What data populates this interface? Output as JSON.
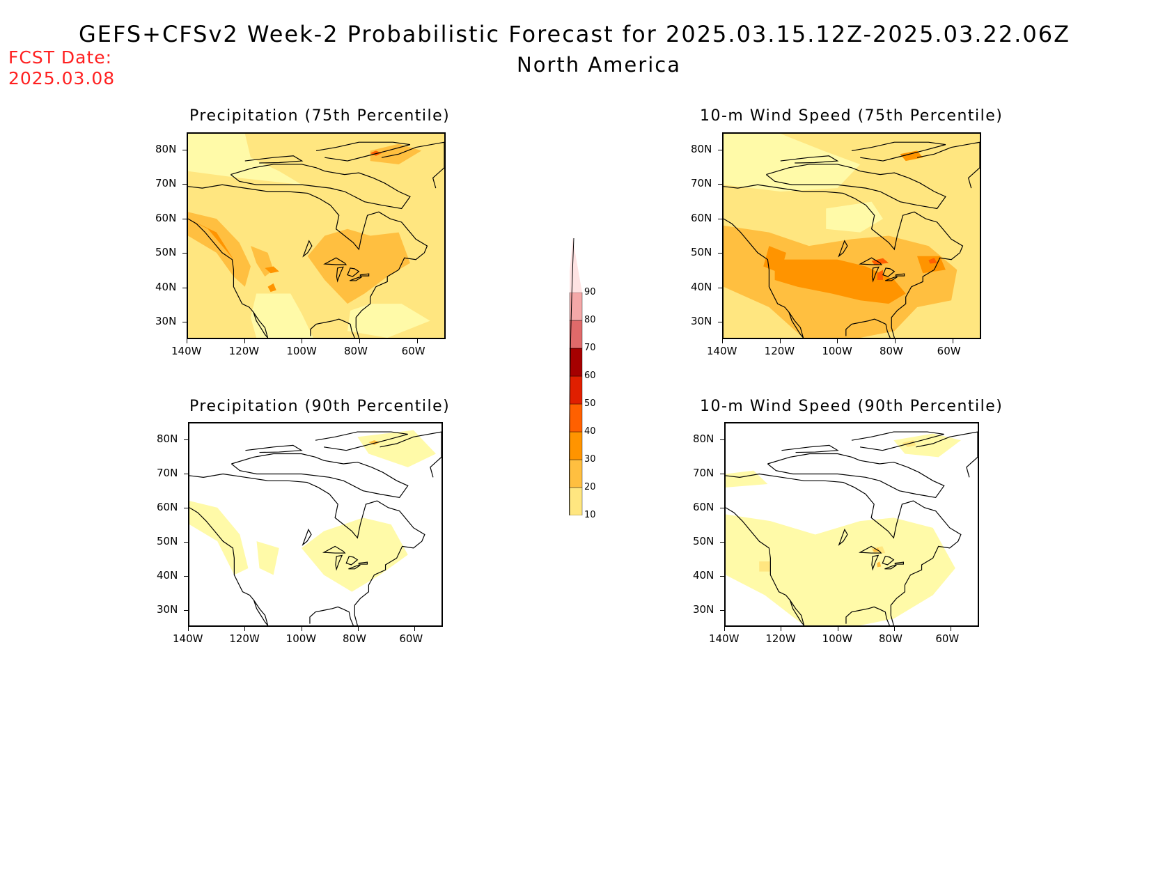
{
  "header": {
    "title": "GEFS+CFSv2 Week-2 Probabilistic Forecast for 2025.03.15.12Z-2025.03.22.06Z",
    "subtitle": "North America",
    "fcst_label": "FCST Date:",
    "fcst_value": "2025.03.08"
  },
  "panels": [
    {
      "id": "precip-75",
      "title": "Precipitation (75th Percentile)",
      "field": "precip",
      "level": 2
    },
    {
      "id": "wind-75",
      "title": "10-m Wind Speed (75th Percentile)",
      "field": "wind",
      "level": 3
    },
    {
      "id": "precip-90",
      "title": "Precipitation (90th Percentile)",
      "field": "precip",
      "level": 1
    },
    {
      "id": "wind-90",
      "title": "10-m Wind Speed (90th Percentile)",
      "field": "wind",
      "level": 1
    }
  ],
  "axes": {
    "lat_labels": [
      "80N",
      "70N",
      "60N",
      "50N",
      "40N",
      "30N"
    ],
    "lon_labels": [
      "140W",
      "120W",
      "100W",
      "80W",
      "60W"
    ]
  },
  "colorbar": {
    "levels": [
      "10",
      "20",
      "30",
      "40",
      "50",
      "60",
      "70",
      "80",
      "90"
    ],
    "colors": [
      "#fffaa8",
      "#ffe680",
      "#ffbf40",
      "#ff9400",
      "#ff6000",
      "#e01f00",
      "#a50000",
      "#e06a6a",
      "#f4a8a8",
      "#ffe3e3"
    ]
  }
}
